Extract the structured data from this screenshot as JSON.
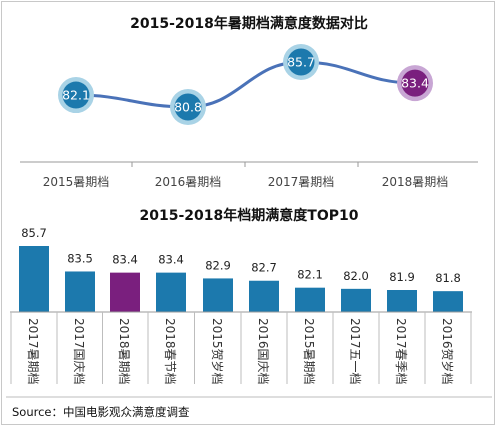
{
  "source": "Source：中国电影观众满意度调查",
  "colors": {
    "primary": "#1c79ad",
    "highlight": "#7a1f7e",
    "highlight_ring": "#c8a6d4",
    "ring": "#a9d3e6",
    "line": "#4a72b8",
    "axis": "#9a9a9a"
  },
  "chart_data": [
    {
      "type": "line",
      "title": "2015-2018年暑期档满意度数据对比",
      "categories": [
        "2015暑期档",
        "2016暑期档",
        "2017暑期档",
        "2018暑期档"
      ],
      "values": [
        82.1,
        80.8,
        85.7,
        83.4
      ],
      "labels": [
        "82.1",
        "80.8",
        "85.7",
        "83.4"
      ],
      "highlight_index": 3,
      "grid": false
    },
    {
      "type": "bar",
      "title": "2015-2018年档期满意度TOP10",
      "categories": [
        "2017暑期档",
        "2017国庆档",
        "2018暑期档",
        "2018春节档",
        "2015贺岁档",
        "2016国庆档",
        "2015暑期档",
        "2017五一档",
        "2017春季档",
        "2016贺岁档"
      ],
      "values": [
        85.7,
        83.5,
        83.4,
        83.4,
        82.9,
        82.7,
        82.1,
        82.0,
        81.9,
        81.8
      ],
      "labels": [
        "85.7",
        "83.5",
        "83.4",
        "83.4",
        "82.9",
        "82.7",
        "82.1",
        "82.0",
        "81.9",
        "81.8"
      ],
      "highlight_index": 2,
      "grid": false
    }
  ]
}
